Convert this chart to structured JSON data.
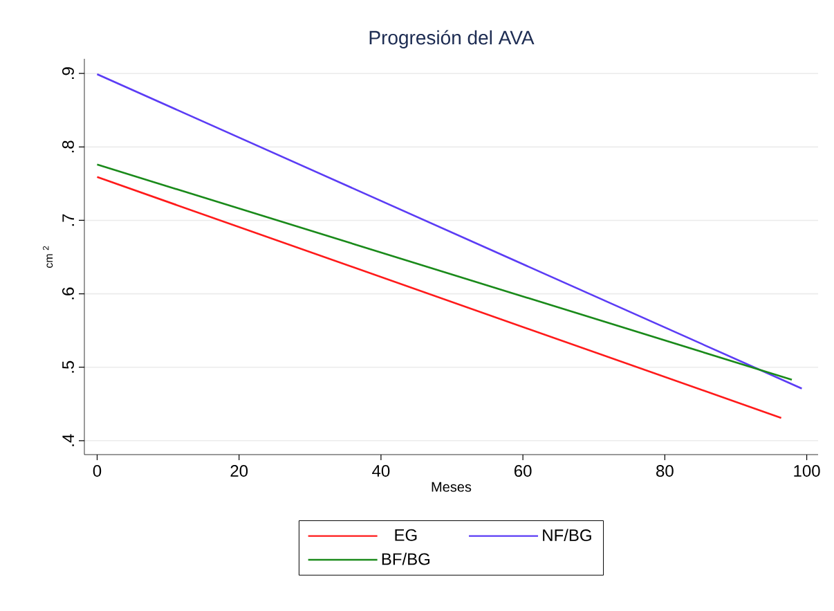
{
  "chart_data": {
    "type": "line",
    "title": "Progresión del AVA",
    "xlabel": "Meses",
    "ylabel": "cm $^{2}$",
    "xlim": [
      -1.8,
      101.6
    ],
    "ylim": [
      0.381,
      0.92
    ],
    "xticks": [
      0,
      20,
      40,
      60,
      80,
      100
    ],
    "yticks": [
      {
        "value": 0.4,
        "label": ".4"
      },
      {
        "value": 0.5,
        "label": ".5"
      },
      {
        "value": 0.6,
        "label": ".6"
      },
      {
        "value": 0.7,
        "label": ".7"
      },
      {
        "value": 0.8,
        "label": ".8"
      },
      {
        "value": 0.9,
        "label": ".9"
      }
    ],
    "grid": "y",
    "legend": "bottom",
    "marker": "none",
    "line_style": "solid",
    "series": [
      {
        "name": "EG",
        "color": "#ff1a1a",
        "x": [
          0,
          96.4
        ],
        "values": [
          0.759,
          0.431
        ]
      },
      {
        "name": "NF/BG",
        "color": "#5b3cf5",
        "x": [
          0,
          99.3
        ],
        "values": [
          0.899,
          0.471
        ]
      },
      {
        "name": "BF/BG",
        "color": "#1a8a1a",
        "x": [
          0,
          97.9
        ],
        "values": [
          0.776,
          0.483
        ]
      }
    ]
  }
}
